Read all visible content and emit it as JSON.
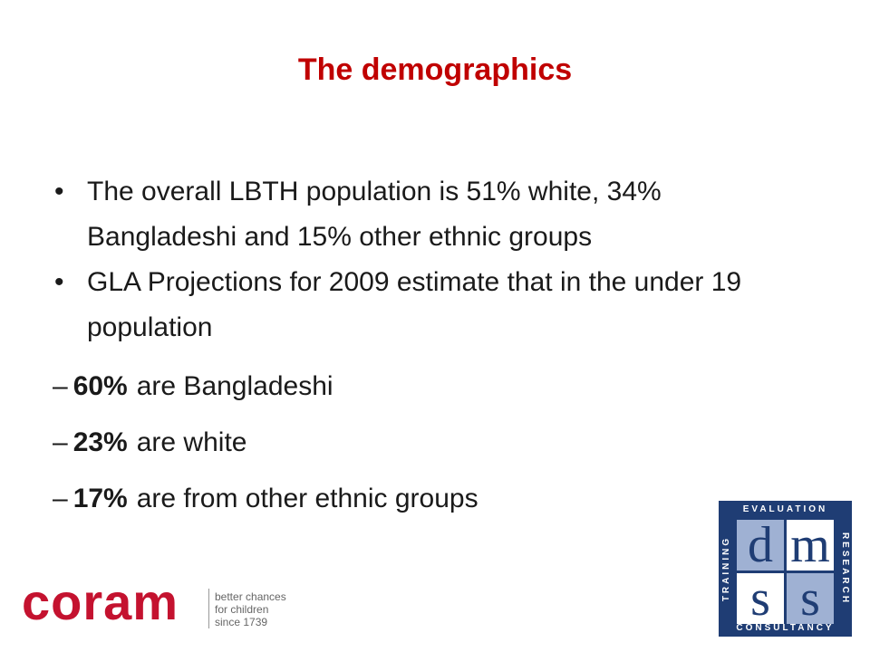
{
  "title": "The demographics",
  "bullets": [
    {
      "marker": "•",
      "text": "The overall LBTH population is 51% white, 34% Bangladeshi and 15% other ethnic groups"
    },
    {
      "marker": "•",
      "text": "GLA Projections for 2009 estimate that in the under 19 population"
    }
  ],
  "sub_items": [
    {
      "marker": "–",
      "bold": "60%",
      "text": "are Bangladeshi"
    },
    {
      "marker": "–",
      "bold": "23%",
      "text": "are white"
    },
    {
      "marker": "–",
      "bold": "17%",
      "text": "are from other ethnic groups"
    }
  ],
  "coram_logo": {
    "name": "coram",
    "tagline": [
      "better chances",
      "for children",
      "since 1739"
    ]
  },
  "dms_logo": {
    "top": "EVALUATION",
    "right": "RESEARCH",
    "bottom": "CONSULTANCY",
    "left": "TRAINING",
    "letters": [
      "d",
      "m",
      "s",
      "s"
    ]
  }
}
